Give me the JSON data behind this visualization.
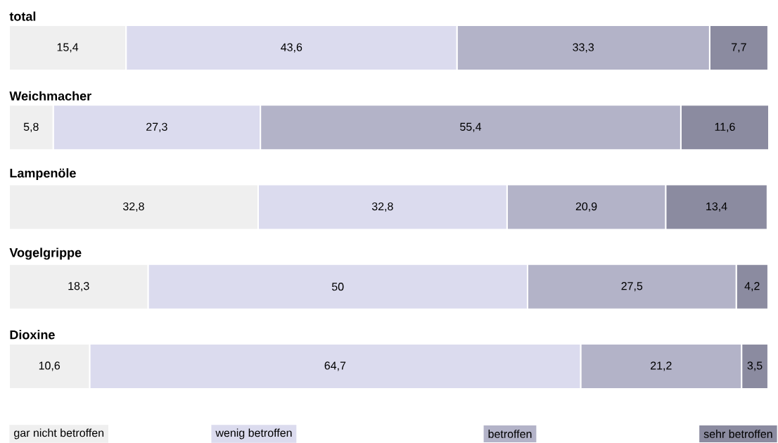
{
  "chart_data": {
    "type": "bar",
    "orientation": "horizontal",
    "stacked": true,
    "categories": [
      "total",
      "Weichmacher",
      "Lampenöle",
      "Vogelgrippe",
      "Dioxine"
    ],
    "legend": "bottom",
    "series": [
      {
        "name": "gar nicht betroffen",
        "color": "#efefef",
        "values": [
          15.4,
          5.8,
          32.8,
          18.3,
          10.6
        ],
        "value_labels": [
          "15,4",
          "5,8",
          "32,8",
          "18,3",
          "10,6"
        ]
      },
      {
        "name": "wenig betroffen",
        "color": "#dbdbee",
        "values": [
          43.6,
          27.3,
          32.8,
          50,
          64.7
        ],
        "value_labels": [
          "43,6",
          "27,3",
          "32,8",
          "50",
          "64,7"
        ]
      },
      {
        "name": "betroffen",
        "color": "#b3b3c8",
        "values": [
          33.3,
          55.4,
          20.9,
          27.5,
          21.2
        ],
        "value_labels": [
          "33,3",
          "55,4",
          "20,9",
          "27,5",
          "21,2"
        ]
      },
      {
        "name": "sehr betroffen",
        "color": "#8b8ba0",
        "values": [
          7.7,
          11.6,
          13.4,
          4.2,
          3.5
        ],
        "value_labels": [
          "7,7",
          "11,6",
          "13,4",
          "4,2",
          "3,5"
        ]
      }
    ]
  }
}
